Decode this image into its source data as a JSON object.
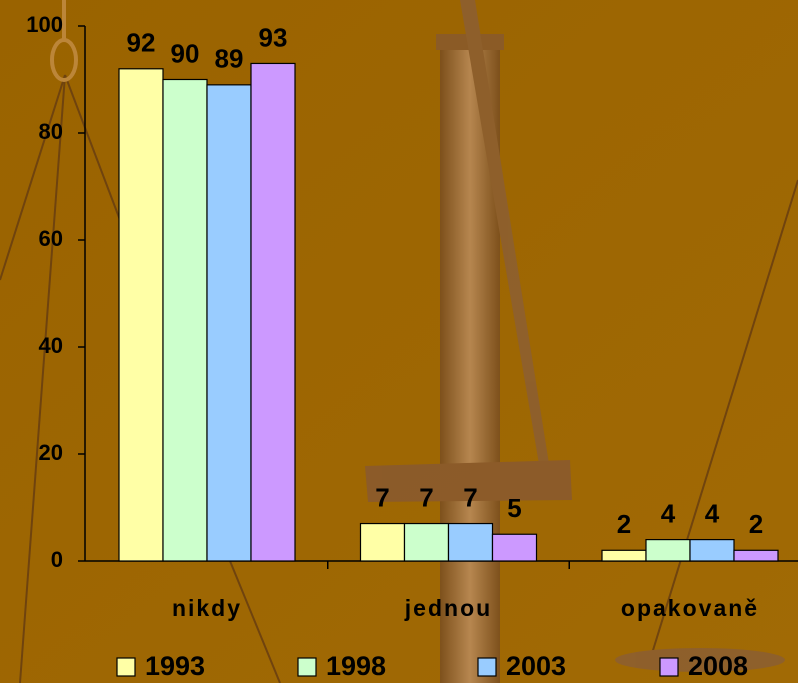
{
  "chart_data": {
    "type": "bar",
    "categories": [
      "nikdy",
      "jednou",
      "opakovaně"
    ],
    "series": [
      {
        "name": "1993",
        "color": "#ffffa6",
        "values": [
          92,
          7,
          2
        ]
      },
      {
        "name": "1998",
        "color": "#ccffcc",
        "values": [
          90,
          7,
          4
        ]
      },
      {
        "name": "2003",
        "color": "#99ccff",
        "values": [
          89,
          7,
          4
        ]
      },
      {
        "name": "2008",
        "color": "#cc99ff",
        "values": [
          93,
          5,
          2
        ]
      }
    ],
    "ylim": [
      0,
      100
    ],
    "yticks": [
      0,
      20,
      40,
      60,
      80,
      100
    ],
    "grid": false,
    "legend": "bottom",
    "data_labels": true
  }
}
